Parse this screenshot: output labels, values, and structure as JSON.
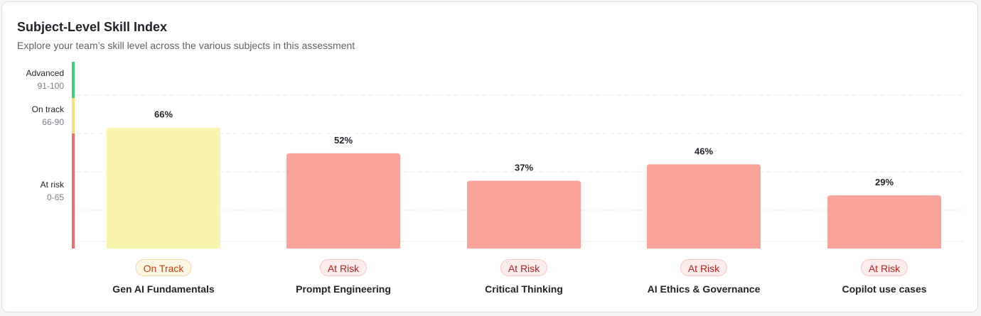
{
  "header": {
    "title": "Subject-Level Skill Index",
    "subtitle": "Explore your team’s skill level across the various subjects in this assessment"
  },
  "chart_data": {
    "type": "bar",
    "title": "Subject-Level Skill Index",
    "ylim": [
      0,
      100
    ],
    "categories": [
      "Gen AI Fundamentals",
      "Prompt Engineering",
      "Critical Thinking",
      "AI Ethics & Governance",
      "Copilot use cases"
    ],
    "values": [
      66,
      52,
      37,
      46,
      29
    ],
    "value_labels": [
      "66%",
      "52%",
      "37%",
      "46%",
      "29%"
    ],
    "statuses": [
      "On Track",
      "At Risk",
      "At Risk",
      "At Risk",
      "At Risk"
    ],
    "bands": [
      {
        "name": "Advanced",
        "range": "91-100",
        "min": 91,
        "max": 100,
        "color": "#3ecf78"
      },
      {
        "name": "On track",
        "range": "66-90",
        "min": 66,
        "max": 90,
        "color": "#f5e27a"
      },
      {
        "name": "At risk",
        "range": "0-65",
        "min": 0,
        "max": 65,
        "color": "#ef6f6f"
      }
    ],
    "bar_colors": {
      "On Track": "#f7f5b0",
      "At Risk": "#f9a39a"
    }
  }
}
